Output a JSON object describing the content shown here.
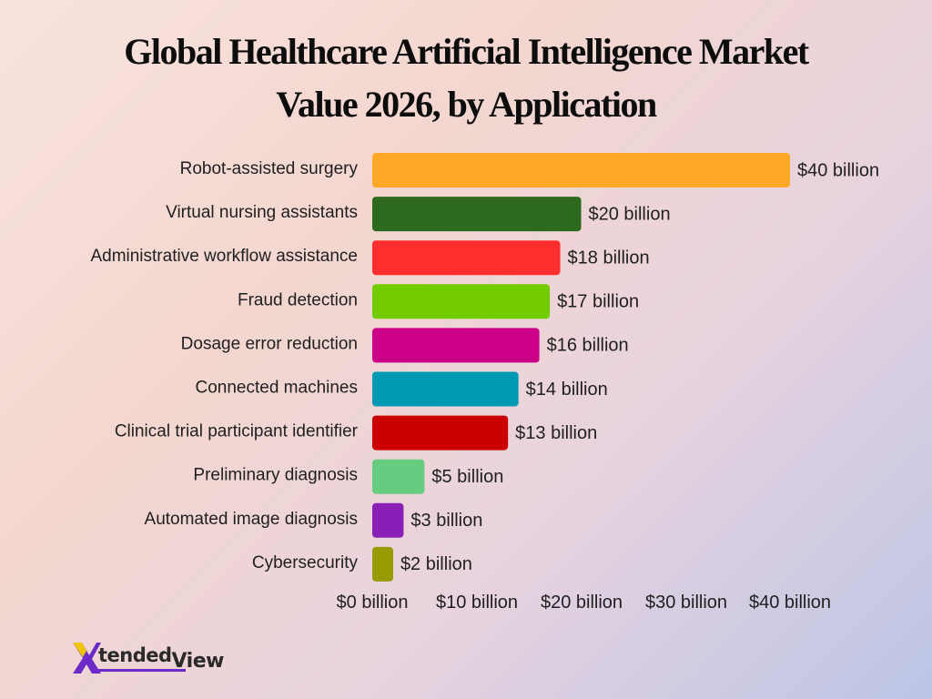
{
  "title_lines": [
    "Global Healthcare Artificial Intelligence Market",
    "Value 2026, by Application"
  ],
  "logo": {
    "part1": "tended",
    "part2": "View",
    "icon": "x-logo-icon"
  },
  "chart_data": {
    "type": "bar",
    "orientation": "horizontal",
    "title": "Global Healthcare Artificial Intelligence Market Value 2026, by Application",
    "categories": [
      "Robot-assisted surgery",
      "Virtual nursing assistants",
      "Administrative workflow assistance",
      "Fraud detection",
      "Dosage error reduction",
      "Connected machines",
      "Clinical trial participant identifier",
      "Preliminary diagnosis",
      "Automated image diagnosis",
      "Cybersecurity"
    ],
    "values": [
      40,
      20,
      18,
      17,
      16,
      14,
      13,
      5,
      3,
      2
    ],
    "value_labels": [
      "$40 billion",
      "$20 billion",
      "$18 billion",
      "$17 billion",
      "$16 billion",
      "$14 billion",
      "$13 billion",
      "$5 billion",
      "$3 billion",
      "$2 billion"
    ],
    "colors": [
      "#ffa726",
      "#2e6a1e",
      "#ff2e2e",
      "#72cc00",
      "#cc0088",
      "#0099b3",
      "#cc0000",
      "#66cc80",
      "#8a1fb8",
      "#999900"
    ],
    "x_ticks": [
      0,
      10,
      20,
      30,
      40
    ],
    "x_tick_labels": [
      "$0 billion",
      "$10 billion",
      "$20 billion",
      "$30 billion",
      "$40 billion"
    ],
    "xlim": [
      0,
      40
    ],
    "xlabel": "",
    "ylabel": "",
    "grid": false,
    "legend": "none"
  }
}
